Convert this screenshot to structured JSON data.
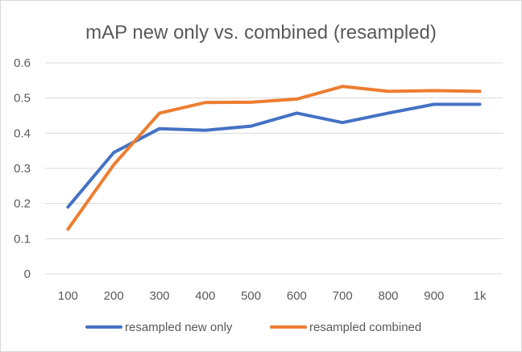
{
  "chart_data": {
    "type": "line",
    "title": "mAP new only vs. combined (resampled)",
    "categories": [
      "100",
      "200",
      "300",
      "400",
      "500",
      "600",
      "700",
      "800",
      "900",
      "1k"
    ],
    "ylim": [
      0,
      0.6
    ],
    "yticks": [
      "0",
      "0.1",
      "0.2",
      "0.3",
      "0.4",
      "0.5",
      "0.6"
    ],
    "grid": true,
    "legend_position": "bottom",
    "series": [
      {
        "name": "resampled new only",
        "color": "#4472C4",
        "values": [
          0.19,
          0.345,
          0.413,
          0.408,
          0.42,
          0.457,
          0.43,
          0.457,
          0.482,
          0.482
        ]
      },
      {
        "name": "resampled combined",
        "color": "#ED7D31",
        "values": [
          0.127,
          0.31,
          0.457,
          0.487,
          0.488,
          0.497,
          0.533,
          0.519,
          0.521,
          0.519
        ]
      }
    ]
  }
}
